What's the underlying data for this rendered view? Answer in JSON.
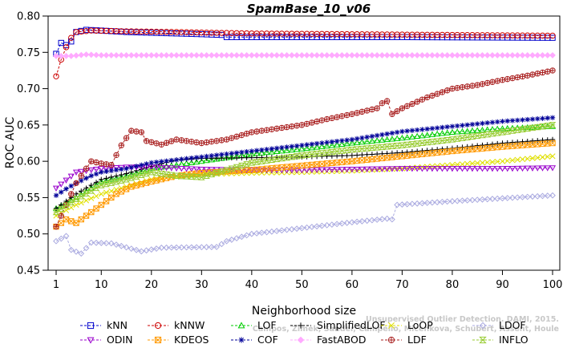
{
  "chart_data": {
    "type": "line",
    "title": "SpamBase_10_v06",
    "xlabel": "Neighborhood size",
    "ylabel": "ROC AUC",
    "xlim": [
      1,
      100
    ],
    "ylim": [
      0.45,
      0.8
    ],
    "xticks": [
      1,
      10,
      20,
      30,
      40,
      50,
      60,
      70,
      80,
      90,
      100
    ],
    "yticks": [
      0.45,
      0.5,
      0.55,
      0.6,
      0.65,
      0.7,
      0.75,
      0.8
    ],
    "ytick_labels": [
      "0.45",
      "0.50",
      "0.55",
      "0.60",
      "0.65",
      "0.70",
      "0.75",
      "0.80"
    ],
    "grid": false,
    "legend_position": "bottom",
    "watermark_lines": [
      "Campos, Zimek, Sander, Campello, Micenkova, Schubert, Assent, Houle",
      "Unsupervised Outlier Detection. DAMI, 2015."
    ],
    "series": [
      {
        "name": "kNN",
        "color": "#0000cc",
        "marker": "square",
        "points": [
          [
            1,
            0.748
          ],
          [
            2,
            0.763
          ],
          [
            3,
            0.76
          ],
          [
            4,
            0.765
          ],
          [
            5,
            0.778
          ],
          [
            7,
            0.781
          ],
          [
            10,
            0.78
          ],
          [
            15,
            0.778
          ],
          [
            20,
            0.777
          ],
          [
            30,
            0.775
          ],
          [
            34,
            0.774
          ],
          [
            35,
            0.771
          ],
          [
            50,
            0.771
          ],
          [
            70,
            0.771
          ],
          [
            100,
            0.77
          ]
        ]
      },
      {
        "name": "kNNW",
        "color": "#cc0000",
        "marker": "circle",
        "points": [
          [
            1,
            0.717
          ],
          [
            2,
            0.74
          ],
          [
            3,
            0.757
          ],
          [
            4,
            0.77
          ],
          [
            5,
            0.778
          ],
          [
            8,
            0.78
          ],
          [
            15,
            0.779
          ],
          [
            25,
            0.778
          ],
          [
            40,
            0.776
          ],
          [
            60,
            0.775
          ],
          [
            80,
            0.774
          ],
          [
            100,
            0.773
          ]
        ]
      },
      {
        "name": "LOF",
        "color": "#00cc00",
        "marker": "triangle-up",
        "points": [
          [
            1,
            0.535
          ],
          [
            5,
            0.55
          ],
          [
            10,
            0.572
          ],
          [
            15,
            0.58
          ],
          [
            20,
            0.59
          ],
          [
            30,
            0.6
          ],
          [
            40,
            0.61
          ],
          [
            50,
            0.617
          ],
          [
            60,
            0.625
          ],
          [
            70,
            0.632
          ],
          [
            80,
            0.64
          ],
          [
            90,
            0.645
          ],
          [
            100,
            0.648
          ]
        ]
      },
      {
        "name": "SimplifiedLOF",
        "color": "#000000",
        "marker": "plus",
        "points": [
          [
            1,
            0.535
          ],
          [
            5,
            0.555
          ],
          [
            10,
            0.575
          ],
          [
            15,
            0.583
          ],
          [
            20,
            0.593
          ],
          [
            25,
            0.602
          ],
          [
            30,
            0.604
          ],
          [
            40,
            0.605
          ],
          [
            50,
            0.606
          ],
          [
            60,
            0.608
          ],
          [
            70,
            0.612
          ],
          [
            80,
            0.618
          ],
          [
            90,
            0.625
          ],
          [
            100,
            0.63
          ]
        ]
      },
      {
        "name": "LoOP",
        "color": "#e0e000",
        "marker": "x",
        "points": [
          [
            1,
            0.525
          ],
          [
            5,
            0.54
          ],
          [
            10,
            0.555
          ],
          [
            15,
            0.565
          ],
          [
            20,
            0.575
          ],
          [
            30,
            0.582
          ],
          [
            40,
            0.584
          ],
          [
            50,
            0.585
          ],
          [
            60,
            0.587
          ],
          [
            70,
            0.59
          ],
          [
            80,
            0.595
          ],
          [
            90,
            0.6
          ],
          [
            100,
            0.607
          ]
        ]
      },
      {
        "name": "LDOF",
        "color": "#aaaae0",
        "marker": "diamond",
        "points": [
          [
            1,
            0.49
          ],
          [
            3,
            0.497
          ],
          [
            4,
            0.478
          ],
          [
            6,
            0.473
          ],
          [
            8,
            0.488
          ],
          [
            12,
            0.487
          ],
          [
            18,
            0.476
          ],
          [
            22,
            0.481
          ],
          [
            33,
            0.482
          ],
          [
            35,
            0.49
          ],
          [
            40,
            0.5
          ],
          [
            50,
            0.508
          ],
          [
            60,
            0.516
          ],
          [
            67,
            0.521
          ],
          [
            68,
            0.52
          ],
          [
            69,
            0.54
          ],
          [
            80,
            0.545
          ],
          [
            90,
            0.549
          ],
          [
            100,
            0.553
          ]
        ]
      },
      {
        "name": "ODIN",
        "color": "#9900cc",
        "marker": "triangle-down",
        "points": [
          [
            1,
            0.563
          ],
          [
            5,
            0.585
          ],
          [
            10,
            0.59
          ],
          [
            15,
            0.592
          ],
          [
            20,
            0.592
          ],
          [
            30,
            0.589
          ],
          [
            40,
            0.588
          ],
          [
            50,
            0.588
          ],
          [
            60,
            0.589
          ],
          [
            70,
            0.59
          ],
          [
            80,
            0.59
          ],
          [
            90,
            0.59
          ],
          [
            100,
            0.591
          ]
        ]
      },
      {
        "name": "KDEOS",
        "color": "#ff9900",
        "marker": "square-cross",
        "points": [
          [
            1,
            0.51
          ],
          [
            3,
            0.52
          ],
          [
            5,
            0.515
          ],
          [
            8,
            0.53
          ],
          [
            10,
            0.54
          ],
          [
            13,
            0.555
          ],
          [
            16,
            0.565
          ],
          [
            20,
            0.572
          ],
          [
            25,
            0.58
          ],
          [
            30,
            0.584
          ],
          [
            40,
            0.588
          ],
          [
            50,
            0.594
          ],
          [
            60,
            0.6
          ],
          [
            70,
            0.607
          ],
          [
            80,
            0.614
          ],
          [
            90,
            0.62
          ],
          [
            100,
            0.625
          ]
        ]
      },
      {
        "name": "COF",
        "color": "#000099",
        "marker": "asterisk",
        "points": [
          [
            1,
            0.553
          ],
          [
            3,
            0.562
          ],
          [
            5,
            0.57
          ],
          [
            8,
            0.58
          ],
          [
            10,
            0.585
          ],
          [
            15,
            0.59
          ],
          [
            20,
            0.598
          ],
          [
            30,
            0.606
          ],
          [
            40,
            0.614
          ],
          [
            50,
            0.622
          ],
          [
            60,
            0.63
          ],
          [
            70,
            0.641
          ],
          [
            80,
            0.648
          ],
          [
            90,
            0.655
          ],
          [
            100,
            0.66
          ]
        ]
      },
      {
        "name": "FastABOD",
        "color": "#ffaaff",
        "marker": "diamond-filled",
        "points": [
          [
            1,
            0.745
          ],
          [
            4,
            0.745
          ],
          [
            7,
            0.747
          ],
          [
            10,
            0.746
          ],
          [
            20,
            0.746
          ],
          [
            40,
            0.746
          ],
          [
            60,
            0.746
          ],
          [
            80,
            0.746
          ],
          [
            100,
            0.746
          ]
        ]
      },
      {
        "name": "LDF",
        "color": "#aa2222",
        "marker": "circle-plus",
        "points": [
          [
            1,
            0.51
          ],
          [
            2,
            0.525
          ],
          [
            5,
            0.57
          ],
          [
            8,
            0.6
          ],
          [
            10,
            0.597
          ],
          [
            12,
            0.595
          ],
          [
            14,
            0.622
          ],
          [
            16,
            0.642
          ],
          [
            18,
            0.64
          ],
          [
            19,
            0.628
          ],
          [
            22,
            0.623
          ],
          [
            25,
            0.63
          ],
          [
            30,
            0.625
          ],
          [
            35,
            0.63
          ],
          [
            40,
            0.64
          ],
          [
            45,
            0.645
          ],
          [
            50,
            0.65
          ],
          [
            55,
            0.658
          ],
          [
            60,
            0.665
          ],
          [
            65,
            0.673
          ],
          [
            66,
            0.68
          ],
          [
            67,
            0.683
          ],
          [
            68,
            0.665
          ],
          [
            70,
            0.673
          ],
          [
            75,
            0.688
          ],
          [
            80,
            0.7
          ],
          [
            85,
            0.705
          ],
          [
            90,
            0.712
          ],
          [
            95,
            0.718
          ],
          [
            100,
            0.725
          ]
        ]
      },
      {
        "name": "INFLO",
        "color": "#99cc33",
        "marker": "hourglass",
        "points": [
          [
            1,
            0.53
          ],
          [
            5,
            0.548
          ],
          [
            10,
            0.567
          ],
          [
            15,
            0.575
          ],
          [
            20,
            0.585
          ],
          [
            25,
            0.58
          ],
          [
            30,
            0.578
          ],
          [
            40,
            0.598
          ],
          [
            50,
            0.608
          ],
          [
            60,
            0.616
          ],
          [
            70,
            0.622
          ],
          [
            80,
            0.63
          ],
          [
            90,
            0.64
          ],
          [
            100,
            0.65
          ]
        ]
      }
    ]
  }
}
